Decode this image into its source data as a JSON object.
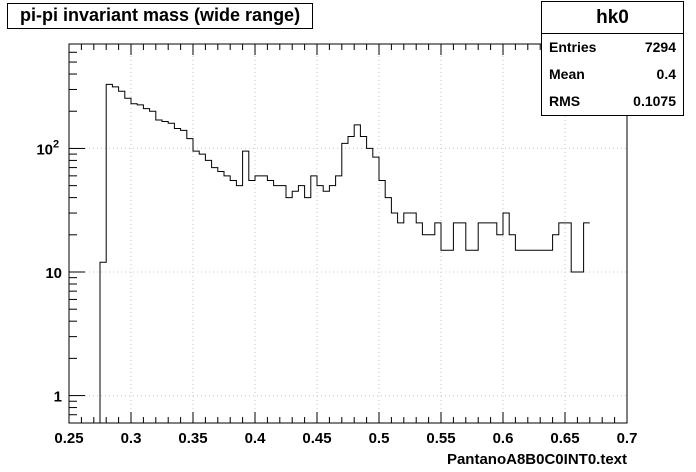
{
  "chart_data": {
    "type": "histogram",
    "title": "pi-pi invariant mass (wide range)",
    "xlabel": "PantanoA8B0C0INT0.text",
    "ylabel": "",
    "xlim": [
      0.25,
      0.7
    ],
    "ylim": [
      0.6,
      700
    ],
    "yscale": "log",
    "grid": true,
    "legend": "none",
    "x_ticks": [
      {
        "value": 0.25,
        "label": "0.25"
      },
      {
        "value": 0.3,
        "label": "0.3"
      },
      {
        "value": 0.35,
        "label": "0.35"
      },
      {
        "value": 0.4,
        "label": "0.4"
      },
      {
        "value": 0.45,
        "label": "0.45"
      },
      {
        "value": 0.5,
        "label": "0.5"
      },
      {
        "value": 0.55,
        "label": "0.55"
      },
      {
        "value": 0.6,
        "label": "0.6"
      },
      {
        "value": 0.65,
        "label": "0.65"
      },
      {
        "value": 0.7,
        "label": "0.7"
      }
    ],
    "y_ticks": [
      {
        "value": 1,
        "label": "1"
      },
      {
        "value": 10,
        "label": "10"
      },
      {
        "value": 100,
        "label": "10",
        "exponent": "2"
      }
    ],
    "bin_low": 0.25,
    "bin_width": 0.005,
    "values": [
      0,
      0,
      0,
      0,
      0,
      12,
      330,
      315,
      290,
      255,
      230,
      225,
      210,
      200,
      170,
      165,
      160,
      145,
      140,
      120,
      95,
      90,
      80,
      70,
      65,
      60,
      55,
      50,
      95,
      55,
      60,
      60,
      55,
      50,
      50,
      40,
      45,
      50,
      40,
      60,
      50,
      45,
      50,
      60,
      110,
      125,
      155,
      125,
      100,
      85,
      55,
      40,
      30,
      25,
      30,
      30,
      25,
      20,
      20,
      25,
      15,
      15,
      25,
      25,
      15,
      15,
      25,
      25,
      25,
      20,
      30,
      20,
      15,
      15,
      15,
      15,
      15,
      15,
      20,
      25,
      25,
      10,
      10,
      25
    ],
    "stats": {
      "name": "hk0",
      "entries_label": "Entries",
      "entries": "7294",
      "mean_label": "Mean",
      "mean": "0.4",
      "rms_label": "RMS",
      "rms": "0.1075"
    }
  }
}
